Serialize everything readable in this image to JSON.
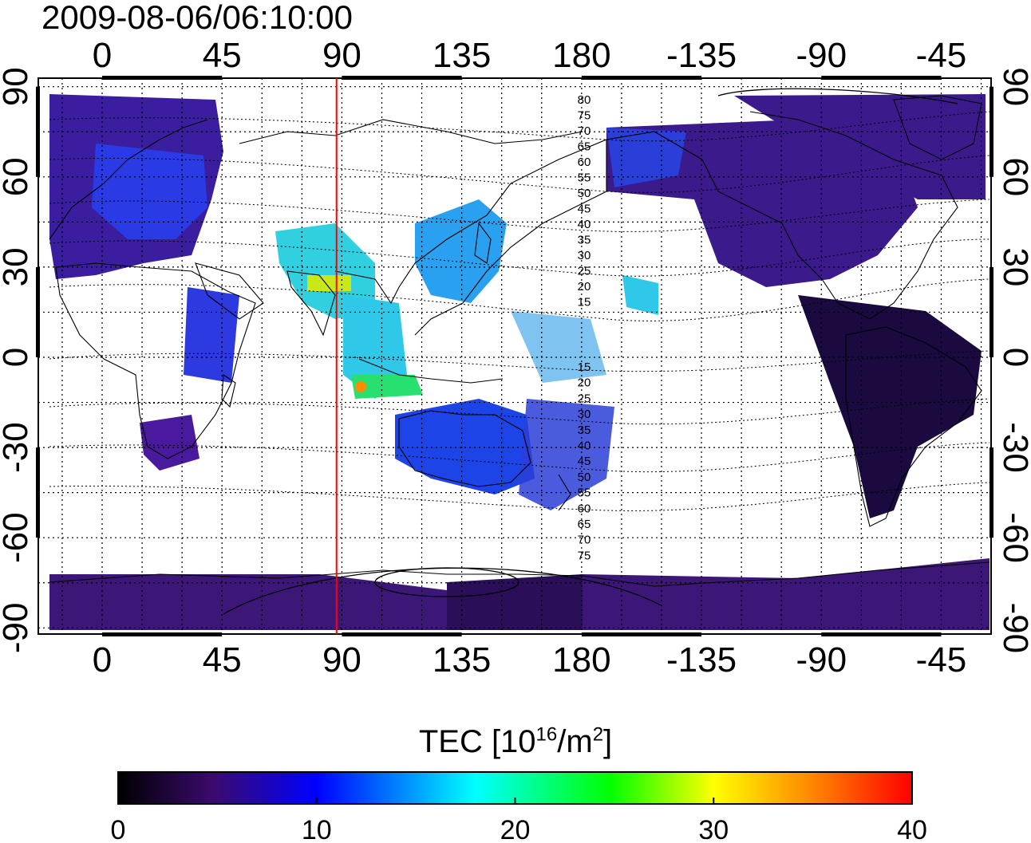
{
  "title": "2009-08-06/06:10:00",
  "map": {
    "top_lon_labels": [
      "0",
      "45",
      "90",
      "135",
      "180",
      "-135",
      "-90",
      "-45"
    ],
    "bottom_lon_labels": [
      "0",
      "45",
      "90",
      "135",
      "180",
      "-135",
      "-90",
      "-45"
    ],
    "left_lat_labels": [
      "90",
      "60",
      "30",
      "0",
      "-30",
      "-60",
      "-90"
    ],
    "right_lat_labels": [
      "90",
      "60",
      "30",
      "0",
      "-30",
      "-60",
      "-90"
    ],
    "marker_line_lon": 88,
    "marker_line_color": "#ff0000",
    "contour_labels_north": [
      "80",
      "75",
      "70",
      "65",
      "60",
      "55",
      "50",
      "45",
      "40",
      "35",
      "30",
      "25",
      "20",
      "15"
    ],
    "contour_labels_south": [
      "15",
      "20",
      "25",
      "30",
      "35",
      "40",
      "45",
      "50",
      "55",
      "60",
      "65",
      "70",
      "75"
    ]
  },
  "colorbar": {
    "title_main": "TEC  [10",
    "title_exp1": "16",
    "title_mid": "/m",
    "title_exp2": "2",
    "title_end": "]",
    "tick_labels": [
      "0",
      "10",
      "20",
      "30",
      "40"
    ],
    "range": [
      0,
      40
    ],
    "stops": [
      "#000000",
      "#3a0a6e",
      "#0000ff",
      "#00ffff",
      "#00ff00",
      "#ffff00",
      "#ff0000"
    ]
  }
}
